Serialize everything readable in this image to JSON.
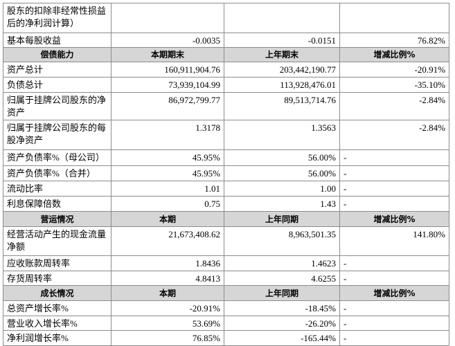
{
  "sections": [
    {
      "rows": [
        [
          "股东的扣除非经常性损益后的净利润计算）"
        ],
        [
          "基本每股收益",
          "-0.0035",
          "-0.0151",
          "76.82%"
        ]
      ]
    },
    {
      "header": [
        "偿债能力",
        "本期期末",
        "上年期末",
        "增减比例%"
      ],
      "rows": [
        [
          "资产总计",
          "160,911,904.76",
          "203,442,190.77",
          "-20.91%"
        ],
        [
          "负债总计",
          "73,939,104.99",
          "113,928,476.01",
          "-35.10%"
        ],
        [
          "归属于挂牌公司股东的净资产",
          "86,972,799.77",
          "89,513,714.76",
          "-2.84%"
        ],
        [
          "归属于挂牌公司股东的每股净资产",
          "1.3178",
          "1.3563",
          "-2.84%"
        ],
        [
          "资产负债率%（母公司）",
          "45.95%",
          "56.00%",
          "-"
        ],
        [
          "资产负债率%（合并）",
          "45.95%",
          "56.00%",
          "-"
        ],
        [
          "流动比率",
          "1.01",
          "1.00",
          "-"
        ],
        [
          "利息保障倍数",
          "0.75",
          "1.43",
          "-"
        ]
      ]
    },
    {
      "header": [
        "营运情况",
        "本期",
        "上年同期",
        "增减比例%"
      ],
      "rows": [
        [
          "经营活动产生的现金流量净额",
          "21,673,408.62",
          "8,963,501.35",
          "141.80%"
        ],
        [
          "应收账款周转率",
          "1.8436",
          "1.4623",
          "-"
        ],
        [
          "存货周转率",
          "4.8413",
          "4.6255",
          "-"
        ]
      ]
    },
    {
      "header": [
        "成长情况",
        "本期",
        "上年同期",
        "增减比例%"
      ],
      "rows": [
        [
          "总资产增长率%",
          "-20.91%",
          "-18.45%",
          "-"
        ],
        [
          "营业收入增长率%",
          "53.69%",
          "-26.20%",
          "-"
        ],
        [
          "净利润增长率%",
          "76.85%",
          "-165.44%",
          "-"
        ]
      ]
    }
  ]
}
